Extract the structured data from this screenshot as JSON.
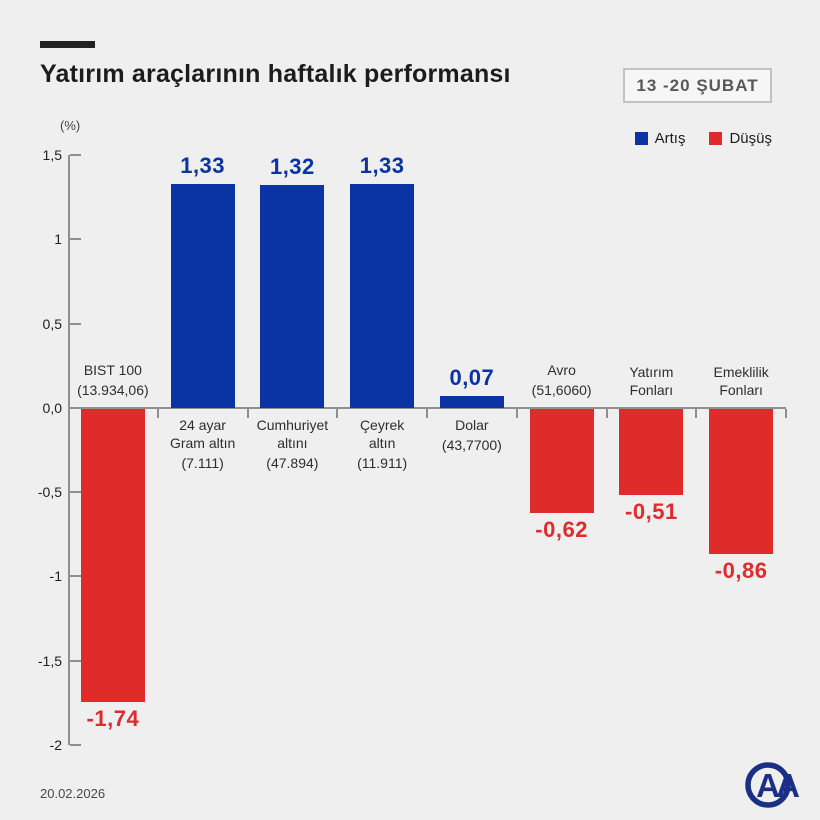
{
  "header": {
    "title": "Yatırım araçlarının haftalık performansı",
    "period_badge": "13 -20 ŞUBAT"
  },
  "footer": {
    "date": "20.02.2026",
    "logo": "AA"
  },
  "colors": {
    "increase_blue": "#0a33a3",
    "decrease_red": "#e02b2b",
    "logo_navy": "#1c2f87",
    "axis_gray": "#8f8f8f"
  },
  "chart_data": {
    "type": "bar",
    "title": "Yatırım araçlarının haftalık performansı",
    "unit_label": "(%)",
    "ylabel": "(%)",
    "ylim": [
      -2,
      1.5
    ],
    "grid": false,
    "legend_position": "top-right",
    "legend": [
      {
        "label": "Artış",
        "color": "#0a33a3"
      },
      {
        "label": "Düşüş",
        "color": "#e02b2b"
      }
    ],
    "y_axis": {
      "ticks": [
        {
          "label": "1,5",
          "value": 1.5
        },
        {
          "label": "1",
          "value": 1.0
        },
        {
          "label": "0,5",
          "value": 0.5
        },
        {
          "label": "0,0",
          "value": 0.0
        },
        {
          "label": "-0,5",
          "value": -0.5
        },
        {
          "label": "-1",
          "value": -1.0
        },
        {
          "label": "-1,5",
          "value": -1.5
        },
        {
          "label": "-2",
          "value": -2.0
        }
      ]
    },
    "categories": [
      {
        "name_lines": [
          "BIST 100"
        ],
        "sub": "(13.934,06)",
        "value": -1.74,
        "display": "-1,74"
      },
      {
        "name_lines": [
          "24 ayar",
          "Gram altın"
        ],
        "sub": "(7.111)",
        "value": 1.33,
        "display": "1,33"
      },
      {
        "name_lines": [
          "Cumhuriyet",
          "altını"
        ],
        "sub": "(47.894)",
        "value": 1.32,
        "display": "1,32"
      },
      {
        "name_lines": [
          "Çeyrek",
          "altın"
        ],
        "sub": "(11.911)",
        "value": 1.33,
        "display": "1,33"
      },
      {
        "name_lines": [
          "Dolar"
        ],
        "sub": "(43,7700)",
        "value": 0.07,
        "display": "0,07"
      },
      {
        "name_lines": [
          "Avro"
        ],
        "sub": "(51,6060)",
        "value": -0.62,
        "display": "-0,62"
      },
      {
        "name_lines": [
          "Yatırım",
          "Fonları"
        ],
        "sub": "",
        "value": -0.51,
        "display": "-0,51"
      },
      {
        "name_lines": [
          "Emeklilik",
          "Fonları"
        ],
        "sub": "",
        "value": -0.86,
        "display": "-0,86"
      }
    ]
  }
}
